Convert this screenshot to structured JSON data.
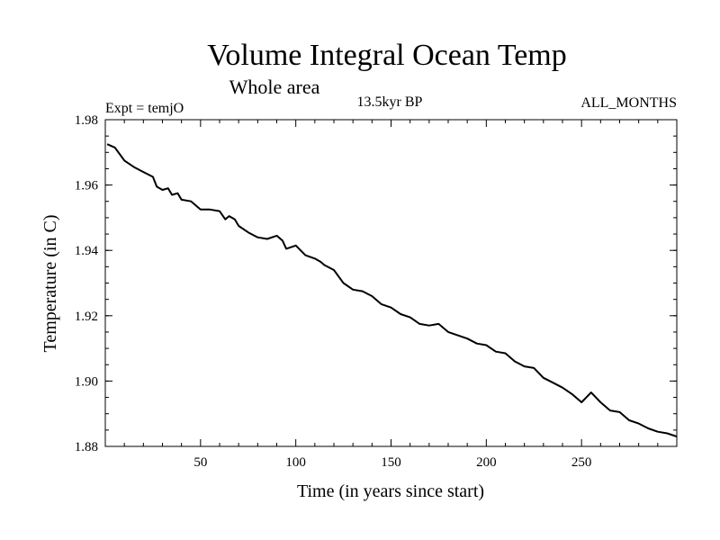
{
  "chart_data": {
    "type": "line",
    "title": "Volume Integral Ocean Temp",
    "subtitle": "Whole area",
    "annotations": {
      "expt": "Expt = temjO",
      "period": "13.5kyr BP",
      "months": "ALL_MONTHS"
    },
    "xlabel": "Time (in years since start)",
    "ylabel": "Temperature (in C)",
    "xlim": [
      0,
      300
    ],
    "ylim": [
      1.88,
      1.98
    ],
    "xticks": [
      50,
      100,
      150,
      200,
      250
    ],
    "xtick_labels": [
      "50",
      "100",
      "150",
      "200",
      "250"
    ],
    "yticks": [
      1.88,
      1.9,
      1.92,
      1.94,
      1.96,
      1.98
    ],
    "ytick_labels": [
      "1.88",
      "1.90",
      "1.92",
      "1.94",
      "1.96",
      "1.98"
    ],
    "grid": false,
    "series": [
      {
        "name": "temjO",
        "x": [
          1,
          5,
          10,
          15,
          20,
          25,
          27,
          30,
          33,
          35,
          38,
          40,
          45,
          50,
          55,
          60,
          63,
          65,
          68,
          70,
          75,
          80,
          85,
          90,
          93,
          95,
          100,
          105,
          110,
          113,
          115,
          120,
          125,
          130,
          135,
          140,
          145,
          150,
          155,
          160,
          165,
          170,
          175,
          180,
          185,
          190,
          195,
          200,
          205,
          210,
          215,
          220,
          225,
          230,
          235,
          240,
          245,
          250,
          255,
          260,
          265,
          270,
          275,
          280,
          285,
          290,
          295,
          300
        ],
        "values": [
          1.9725,
          1.9715,
          1.9675,
          1.9655,
          1.964,
          1.9625,
          1.9595,
          1.9585,
          1.959,
          1.957,
          1.9575,
          1.9555,
          1.955,
          1.9525,
          1.9525,
          1.952,
          1.9495,
          1.9505,
          1.9495,
          1.9475,
          1.9455,
          1.944,
          1.9435,
          1.9445,
          1.943,
          1.9405,
          1.9415,
          1.9385,
          1.9375,
          1.9365,
          1.9355,
          1.934,
          1.93,
          1.928,
          1.9275,
          1.926,
          1.9235,
          1.9225,
          1.9205,
          1.9195,
          1.9175,
          1.917,
          1.9175,
          1.915,
          1.914,
          1.913,
          1.9115,
          1.911,
          1.909,
          1.9085,
          1.906,
          1.9045,
          1.904,
          1.901,
          1.8995,
          1.898,
          1.896,
          1.8935,
          1.8965,
          1.8935,
          1.891,
          1.8905,
          1.888,
          1.887,
          1.8855,
          1.8845,
          1.884,
          1.883
        ]
      }
    ]
  }
}
